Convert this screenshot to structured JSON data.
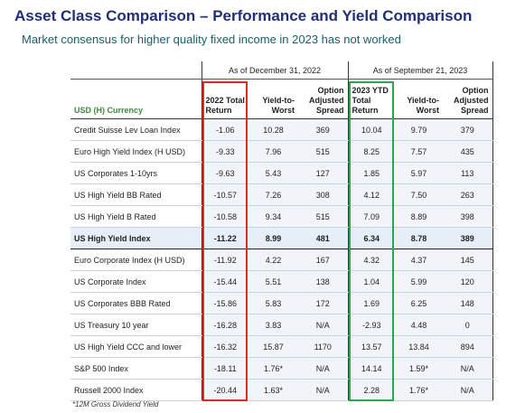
{
  "header": {
    "title": "Asset Class Comparison – Performance and Yield Comparison",
    "subtitle": "Market consensus for higher quality fixed income in 2023 has not worked"
  },
  "table": {
    "groups": [
      "As of December 31, 2022",
      "As of September 21, 2023"
    ],
    "label_header": "USD (H) Currency",
    "columns": [
      "2022 Total Return",
      "Yield-to-Worst",
      "Option Adjusted Spread",
      "2023 YTD Total Return",
      "Yield-to-Worst",
      "Option Adjusted Spread"
    ],
    "rows": [
      [
        "Credit Suisse Lev Loan Index",
        "-1.06",
        "10.28",
        "369",
        "10.04",
        "9.79",
        "379"
      ],
      [
        "Euro High Yield Index (H USD)",
        "-9.33",
        "7.96",
        "515",
        "8.25",
        "7.57",
        "435"
      ],
      [
        "US Corporates 1-10yrs",
        "-9.63",
        "5.43",
        "127",
        "1.85",
        "5.97",
        "113"
      ],
      [
        "US High Yield BB Rated",
        "-10.57",
        "7.26",
        "308",
        "4.12",
        "7.50",
        "263"
      ],
      [
        "US High Yield B Rated",
        "-10.58",
        "9.34",
        "515",
        "7.09",
        "8.89",
        "398"
      ],
      [
        "US High Yield Index",
        "-11.22",
        "8.99",
        "481",
        "6.34",
        "8.78",
        "389"
      ],
      [
        "Euro Corporate Index (H USD)",
        "-11.92",
        "4.22",
        "167",
        "4.32",
        "4.37",
        "145"
      ],
      [
        "US Corporate Index",
        "-15.44",
        "5.51",
        "138",
        "1.04",
        "5.99",
        "120"
      ],
      [
        "US Corporates BBB Rated",
        "-15.86",
        "5.83",
        "172",
        "1.69",
        "6.25",
        "148"
      ],
      [
        "US Treasury 10 year",
        "-16.28",
        "3.83",
        "N/A",
        "-2.93",
        "4.48",
        "0"
      ],
      [
        "US High Yield CCC and lower",
        "-16.32",
        "15.87",
        "1170",
        "13.57",
        "13.84",
        "894"
      ],
      [
        "S&P 500 Index",
        "-18.11",
        "1.76*",
        "N/A",
        "14.14",
        "1.59*",
        "N/A"
      ],
      [
        "Russell 2000 Index",
        "-20.44",
        "1.63*",
        "N/A",
        "2.28",
        "1.76*",
        "N/A"
      ]
    ],
    "footnote": "*12M Gross Dividend Yield"
  }
}
